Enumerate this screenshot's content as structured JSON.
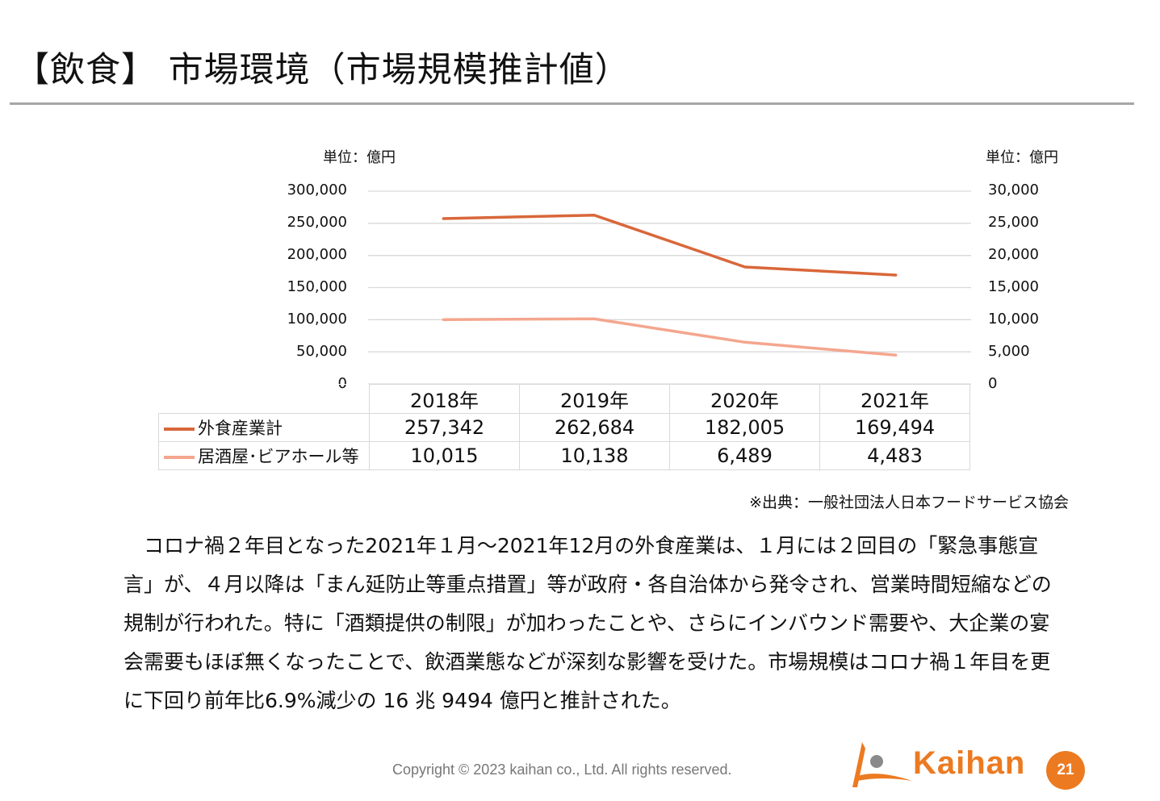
{
  "slide": {
    "title": "【飲食】 市場環境（市場規模推計値）",
    "source": "※出典：一般社団法人日本フードサービス協会",
    "body_text": "　コロナ禍２年目となった2021年１月～2021年12月の外食産業は、１月には２回目の「緊急事態宣言」が、４月以降は「まん延防止等重点措置」等が政府・各自治体から発令され、営業時間短縮などの規制が行われた。特に「酒類提供の制限」が加わったことや、さらにインバウンド需要や、大企業の宴会需要もほぼ無くなったことで、飲酒業態などが深刻な影響を受けた。市場規模はコロナ禍１年目を更に下回り前年比6.9%減少の 16 兆 9494 億円と推計された。",
    "copyright": "Copyright © 2023 kaihan co., Ltd. All rights reserved.",
    "logo_text": "Kaihan",
    "page_number": "21",
    "accent_color": "#ec7a21"
  },
  "chart_data": {
    "type": "line",
    "categories": [
      "2018年",
      "2019年",
      "2020年",
      "2021年"
    ],
    "unit_left": "単位：億円",
    "unit_right": "単位：億円",
    "y_left": {
      "ylim": [
        0,
        300000
      ],
      "ticks": [
        "0",
        "50,000",
        "100,000",
        "150,000",
        "200,000",
        "250,000",
        "300,000"
      ]
    },
    "y_right": {
      "ylim": [
        0,
        30000
      ],
      "ticks": [
        "0",
        "5,000",
        "10,000",
        "15,000",
        "20,000",
        "25,000",
        "30,000"
      ]
    },
    "grid": true,
    "legend_placement": "data-table-left",
    "series": [
      {
        "name": "外食産業計",
        "axis": "left",
        "color": "#d9673a",
        "values": [
          257342,
          262684,
          182005,
          169494
        ],
        "labels": [
          "257,342",
          "262,684",
          "182,005",
          "169,494"
        ]
      },
      {
        "name": "居酒屋･ビアホール等",
        "axis": "right",
        "color": "#f4a68e",
        "values": [
          10015,
          10138,
          6489,
          4483
        ],
        "labels": [
          "10,015",
          "10,138",
          "6,489",
          "4,483"
        ]
      }
    ]
  }
}
